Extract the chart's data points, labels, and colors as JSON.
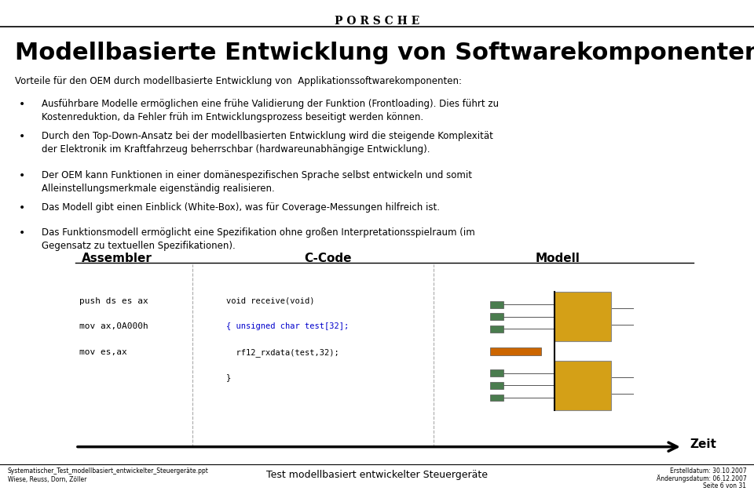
{
  "bg_color": "#ffffff",
  "header_line_color": "#000000",
  "title_text": "Modellbasierte Entwicklung von Softwarekomponenten",
  "title_fontsize": 22,
  "title_bold": true,
  "title_color": "#000000",
  "porsche_logo": "P O R S C H E",
  "intro_text": "Vorteile für den OEM durch modellbasierte Entwicklung von  Applikationssoftwarekomponenten:",
  "bullet_points": [
    "Ausführbare Modelle ermöglichen eine frühe Validierung der Funktion (Frontloading). Dies führt zu\nKostenreduktion, da Fehler früh im Entwicklungsprozess beseitigt werden können.",
    "Durch den Top-Down-Ansatz bei der modellbasierten Entwicklung wird die steigende Komplexität\nder Elektronik im Kraftfahrzeug beherrschbar (hardwareunabhängige Entwicklung).",
    "Der OEM kann Funktionen in einer domänespezifischen Sprache selbst entwickeln und somit\nAlleinstellungsmerkmale eigenständig realisieren.",
    "Das Modell gibt einen Einblick (White-Box), was für Coverage-Messungen hilfreich ist.",
    "Das Funktionsmodell ermöglicht eine Spezifikation ohne großen Interpretationsspielraum (im\nGegensatz zu textuellen Spezifikationen)."
  ],
  "assembler_label": "Assembler",
  "assembler_code": [
    "push ds es ax",
    "mov ax,0A000h",
    "mov es,ax"
  ],
  "ccode_label": "C-Code",
  "ccode_lines": [
    [
      "void receive(void)",
      "#000000"
    ],
    [
      "{ unsigned char test[32];",
      "#0000cc"
    ],
    [
      "  rf12_rxdata(test,32);",
      "#000000"
    ],
    [
      "}",
      "#000000"
    ]
  ],
  "modell_label": "Modell",
  "zeit_label": "Zeit",
  "footer_left_line1": "Systematischer_Test_modellbasiert_entwickelter_Steuergeräte.ppt",
  "footer_left_line2": "Wiese, Reuss, Dorn, Zöller",
  "footer_center": "Test modellbasiert entwickelter Steuergeräte",
  "footer_right_line1": "Erstelldatum: 30.10.2007",
  "footer_right_line2": "Änderungsdatum: 06.12.2007",
  "footer_right_line3": "Seite 6 von 31",
  "arrow_color": "#000000",
  "green_color": "#4a7c4e",
  "yellow_color": "#d4a017",
  "orange_color": "#cc6600"
}
